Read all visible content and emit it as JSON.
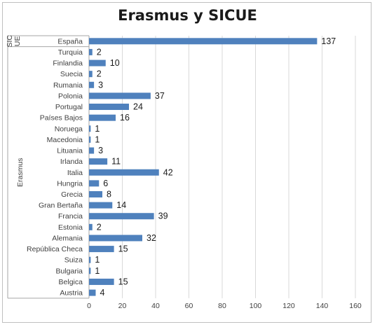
{
  "chart_data": {
    "type": "bar",
    "orientation": "horizontal",
    "title": "Erasmus y SICUE",
    "groups": [
      {
        "label": "SICUE",
        "categories": [
          "España"
        ]
      },
      {
        "label": "Erasmus",
        "categories": [
          "Turquia",
          "Finlandia",
          "Suecia",
          "Rumania",
          "Polonia",
          "Portugal",
          "Países Bajos",
          "Noruega",
          "Macedonia",
          "Lituania",
          "Irlanda",
          "Italia",
          "Hungria",
          "Grecia",
          "Gran Bertaña",
          "Francia",
          "Estonia",
          "Alemania",
          "República Checa",
          "Suiza",
          "Bulgaria",
          "Belgica",
          "Austria"
        ]
      }
    ],
    "categories": [
      "España",
      "Turquia",
      "Finlandia",
      "Suecia",
      "Rumania",
      "Polonia",
      "Portugal",
      "Países Bajos",
      "Noruega",
      "Macedonia",
      "Lituania",
      "Irlanda",
      "Italia",
      "Hungria",
      "Grecia",
      "Gran Bertaña",
      "Francia",
      "Estonia",
      "Alemania",
      "República Checa",
      "Suiza",
      "Bulgaria",
      "Belgica",
      "Austria"
    ],
    "values": [
      137,
      2,
      10,
      2,
      3,
      37,
      24,
      16,
      1,
      1,
      3,
      11,
      42,
      6,
      8,
      14,
      39,
      2,
      32,
      15,
      1,
      1,
      15,
      4
    ],
    "xlim": [
      0,
      160
    ],
    "xticks": [
      0,
      20,
      40,
      60,
      80,
      100,
      120,
      140,
      160
    ],
    "grid": true,
    "bar_color": "#4f81bd",
    "data_labels": true,
    "legend": "none"
  }
}
